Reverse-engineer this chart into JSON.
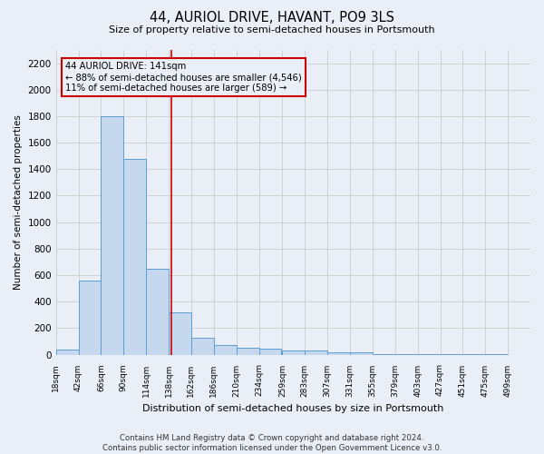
{
  "title": "44, AURIOL DRIVE, HAVANT, PO9 3LS",
  "subtitle": "Size of property relative to semi-detached houses in Portsmouth",
  "xlabel": "Distribution of semi-detached houses by size in Portsmouth",
  "ylabel": "Number of semi-detached properties",
  "bar_values": [
    40,
    560,
    1800,
    1480,
    650,
    320,
    130,
    70,
    55,
    45,
    30,
    30,
    20,
    15,
    5,
    5,
    5,
    5,
    5,
    5
  ],
  "bin_edges": [
    18,
    42,
    66,
    90,
    114,
    138,
    162,
    186,
    210,
    234,
    259,
    283,
    307,
    331,
    355,
    379,
    403,
    427,
    451,
    475,
    499
  ],
  "bin_labels": [
    "18sqm",
    "42sqm",
    "66sqm",
    "90sqm",
    "114sqm",
    "138sqm",
    "162sqm",
    "186sqm",
    "210sqm",
    "234sqm",
    "259sqm",
    "283sqm",
    "307sqm",
    "331sqm",
    "355sqm",
    "379sqm",
    "403sqm",
    "427sqm",
    "451sqm",
    "475sqm",
    "499sqm"
  ],
  "property_size": 141,
  "property_label": "44 AURIOL DRIVE: 141sqm",
  "pct_smaller": 88,
  "count_smaller": 4546,
  "pct_larger": 11,
  "count_larger": 589,
  "bar_color": "#c5d8ed",
  "bar_edge_color": "#5a9fd4",
  "vline_color": "#cc0000",
  "annotation_box_edge": "#cc0000",
  "ylim": [
    0,
    2300
  ],
  "yticks": [
    0,
    200,
    400,
    600,
    800,
    1000,
    1200,
    1400,
    1600,
    1800,
    2000,
    2200
  ],
  "grid_color": "#cccccc",
  "bg_color": "#eaeff7",
  "footer_text": "Contains HM Land Registry data © Crown copyright and database right 2024.\nContains public sector information licensed under the Open Government Licence v3.0."
}
